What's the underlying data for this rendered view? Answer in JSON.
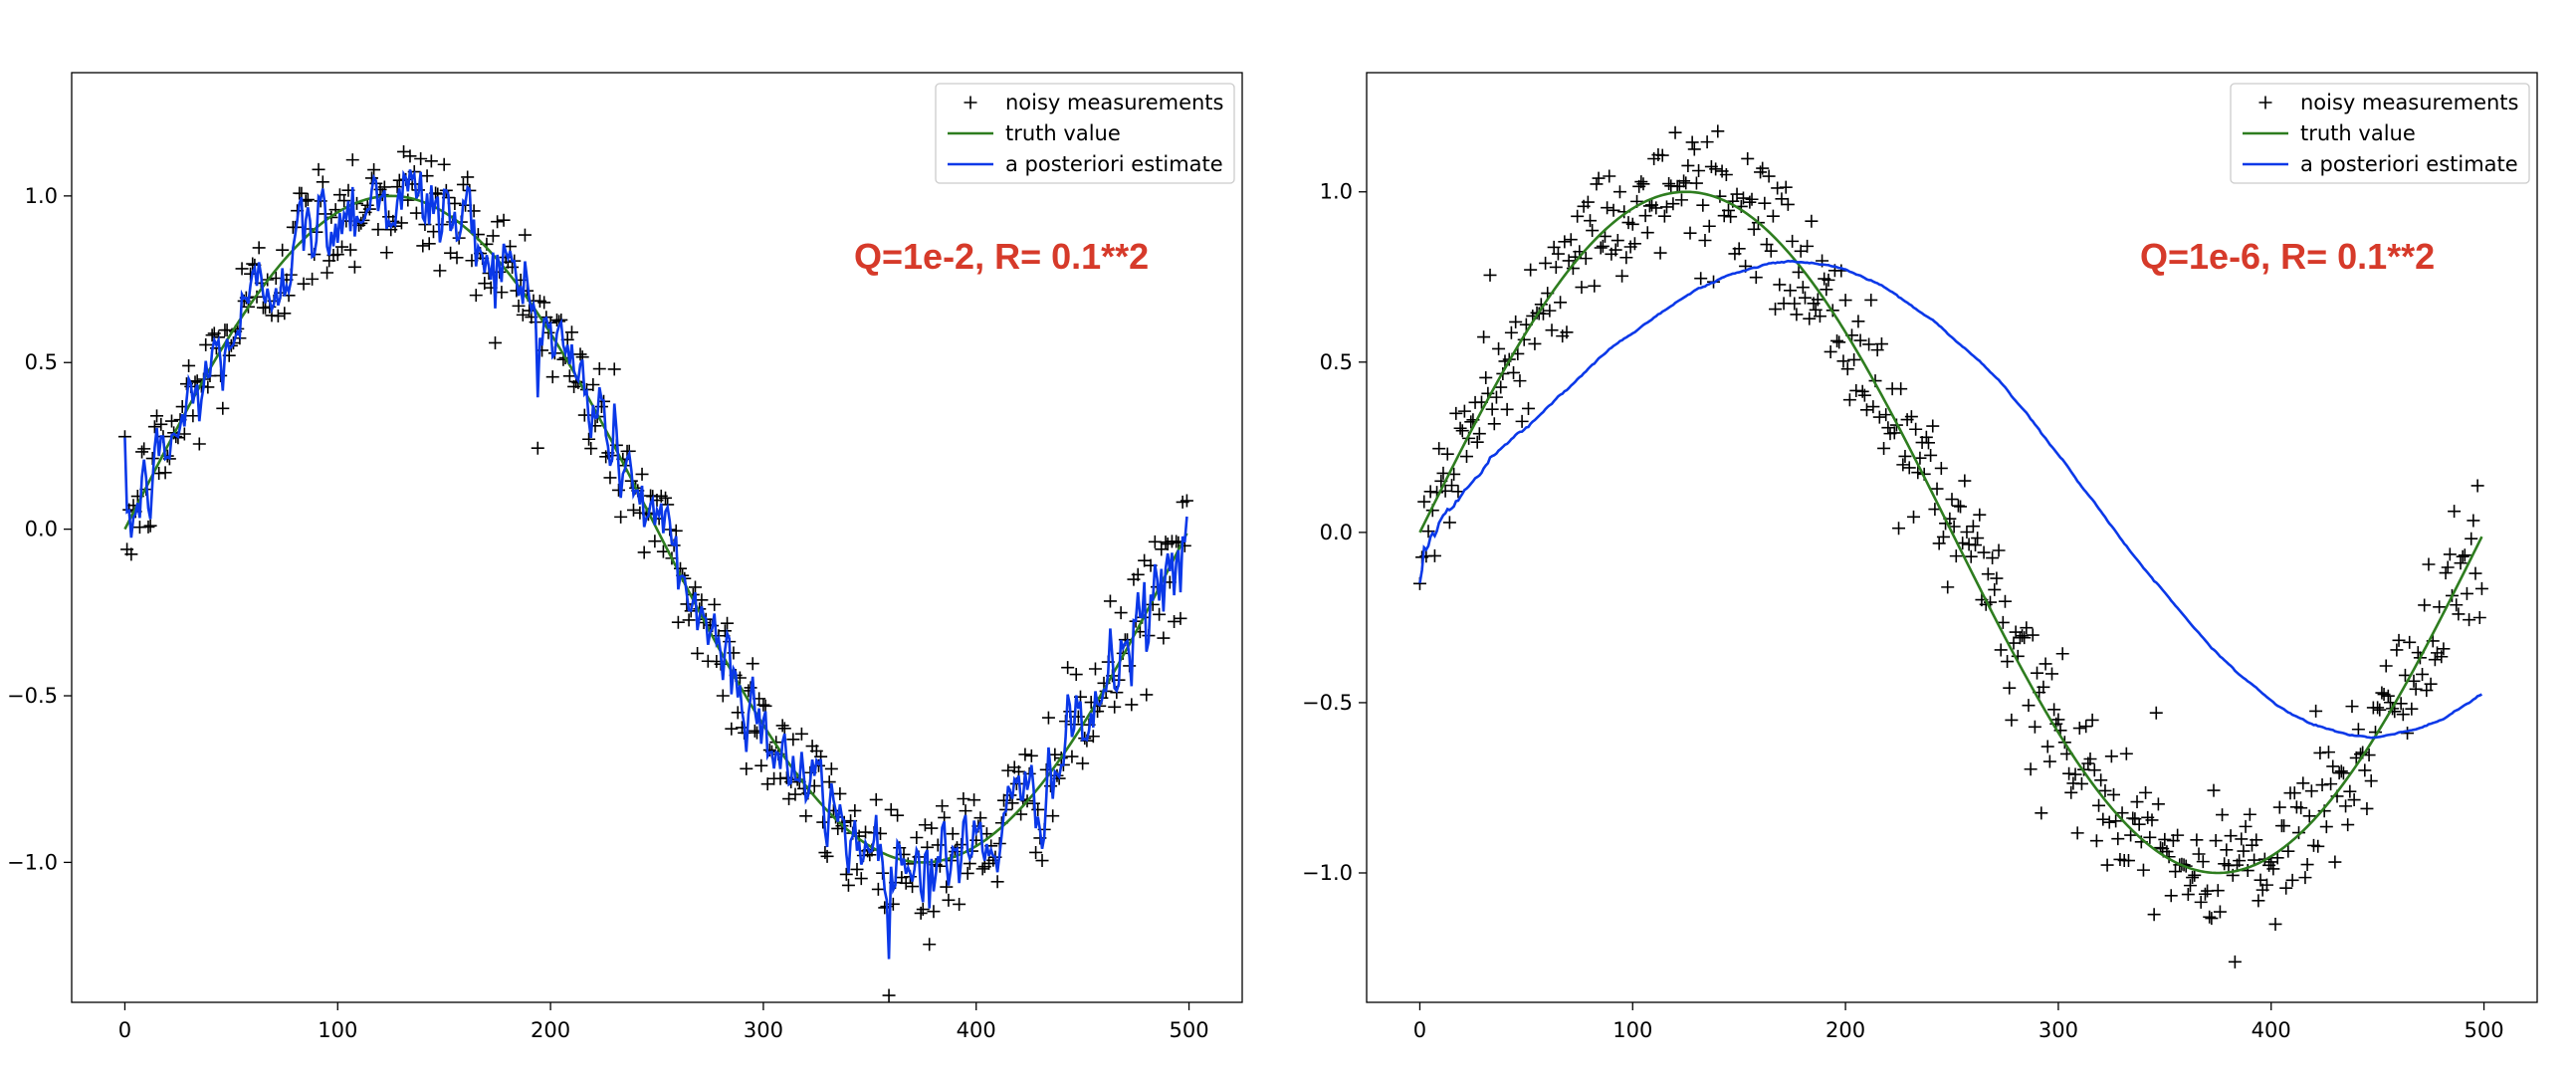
{
  "colors": {
    "measurements": "#000000",
    "truth": "#2e7d1f",
    "estimate": "#0a38e8",
    "annotation": "#d63a2a"
  },
  "chart_data": [
    {
      "type": "line",
      "annotation": "Q=1e-2,   R= 0.1**2",
      "xlim": [
        -25,
        525
      ],
      "ylim": [
        -1.42,
        1.37
      ],
      "xticks": [
        0,
        100,
        200,
        300,
        400,
        500
      ],
      "xtick_labels": [
        "0",
        "100",
        "200",
        "300",
        "400",
        "500"
      ],
      "yticks": [
        -1.0,
        -0.5,
        0.0,
        0.5,
        1.0
      ],
      "ytick_labels": [
        "−1.0",
        "−0.5",
        "0.0",
        "0.5",
        "1.0"
      ],
      "legend_placement": "top-right",
      "grid": false,
      "n_points": 500,
      "truth": {
        "function": "sin",
        "amplitude": 1.0,
        "period": 500
      },
      "series": [
        {
          "name": "noisy measurements",
          "kind": "scatter",
          "marker": "+",
          "noise_std": 0.1
        },
        {
          "name": "truth value",
          "kind": "line"
        },
        {
          "name": "a posteriori estimate",
          "kind": "line",
          "Q": 0.01,
          "R": 0.01
        }
      ]
    },
    {
      "type": "line",
      "annotation": "Q=1e-6,   R= 0.1**2",
      "xlim": [
        -25,
        525
      ],
      "ylim": [
        -1.38,
        1.35
      ],
      "xticks": [
        0,
        100,
        200,
        300,
        400,
        500
      ],
      "xtick_labels": [
        "0",
        "100",
        "200",
        "300",
        "400",
        "500"
      ],
      "yticks": [
        -1.0,
        -0.5,
        0.0,
        0.5,
        1.0
      ],
      "ytick_labels": [
        "−1.0",
        "−0.5",
        "0.0",
        "0.5",
        "1.0"
      ],
      "legend_placement": "top-right",
      "grid": false,
      "n_points": 500,
      "truth": {
        "function": "sin",
        "amplitude": 1.0,
        "period": 500
      },
      "series": [
        {
          "name": "noisy measurements",
          "kind": "scatter",
          "marker": "+",
          "noise_std": 0.1
        },
        {
          "name": "truth value",
          "kind": "line"
        },
        {
          "name": "a posteriori estimate",
          "kind": "line",
          "Q": 1e-06,
          "R": 0.01
        }
      ]
    }
  ]
}
